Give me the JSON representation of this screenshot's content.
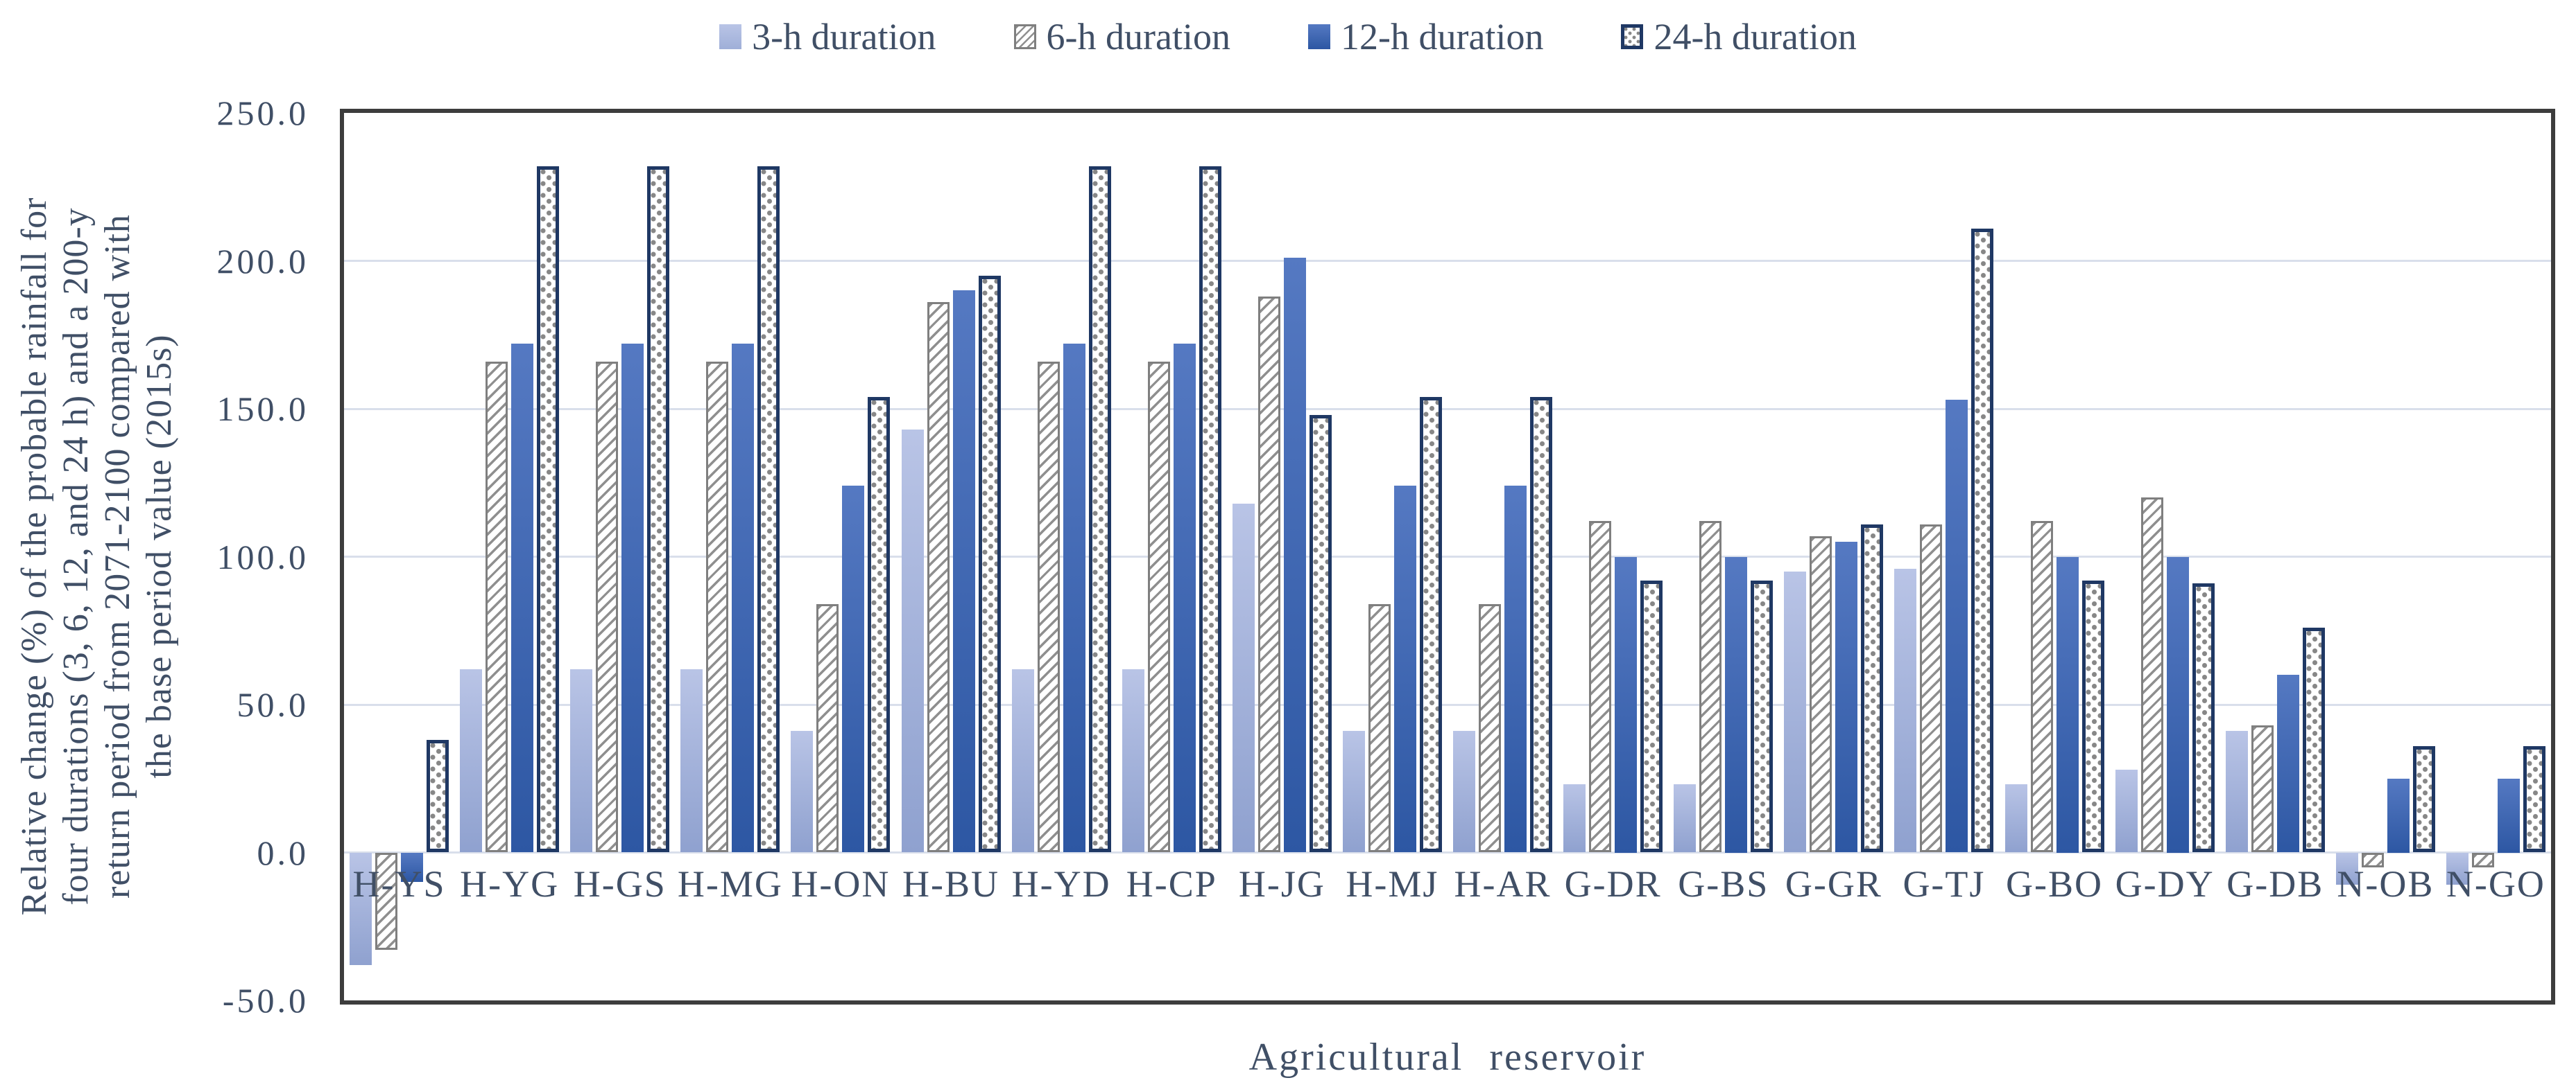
{
  "chart_data": {
    "type": "bar",
    "title": "",
    "xlabel": "Agricultural reservoir",
    "ylabel": "Relative change (%) of the probable rainfall for four durations (3, 6, 12, and 24 h) and a 200-y return period from 2071-2100 compared with the base period value (2015s)",
    "ylabel_lines": [
      "Relative change (%) of the probable rainfall for",
      "four durations (3, 6, 12, and 24 h) and a 200-y",
      "return period from 2071-2100 compared with",
      "the base period value (2015s)"
    ],
    "categories": [
      "H-YS",
      "H-YG",
      "H-GS",
      "H-MG",
      "H-ON",
      "H-BU",
      "H-YD",
      "H-CP",
      "H-JG",
      "H-MJ",
      "H-AR",
      "G-DR",
      "G-BS",
      "G-GR",
      "G-TJ",
      "G-BO",
      "G-DY",
      "G-DB",
      "N-OB",
      "N-GO"
    ],
    "series": [
      {
        "name": "3-h duration",
        "values": [
          -38,
          62,
          62,
          62,
          41,
          143,
          62,
          62,
          118,
          41,
          41,
          23,
          23,
          95,
          96,
          23,
          28,
          41,
          -11,
          -11
        ]
      },
      {
        "name": "6-h duration",
        "values": [
          -33,
          166,
          166,
          166,
          84,
          186,
          166,
          166,
          188,
          84,
          84,
          112,
          112,
          107,
          111,
          112,
          120,
          43,
          -5,
          -5
        ]
      },
      {
        "name": "12-h duration",
        "values": [
          -10,
          172,
          172,
          172,
          124,
          190,
          172,
          172,
          201,
          124,
          124,
          100,
          100,
          105,
          153,
          100,
          100,
          60,
          25,
          25
        ]
      },
      {
        "name": "24-h duration",
        "values": [
          38,
          232,
          232,
          232,
          154,
          195,
          232,
          232,
          148,
          154,
          154,
          92,
          92,
          111,
          211,
          92,
          91,
          76,
          36,
          36
        ]
      }
    ],
    "ylim": [
      -50,
      250
    ],
    "ytick_interval": 50,
    "ytick_labels": [
      "250.0",
      "200.0",
      "150.0",
      "100.0",
      "50.0",
      "0.0",
      "-50.0"
    ],
    "grid": true,
    "legend_position": "top",
    "colors": {
      "series_3h_top": "#b9c4e6",
      "series_3h_bottom": "#8fa1cf",
      "series_6h_hatch": "#8f8f8f",
      "series_6h_border": "#7f7f7f",
      "series_12h_top": "#5579c2",
      "series_12h_bottom": "#2d57a3",
      "series_24h_dot": "#878787",
      "series_24h_border": "#1f3864",
      "text": "#404f66",
      "gridline": "#d9dfeb",
      "plot_border": "#3d3d3d",
      "background": "#ffffff"
    }
  }
}
